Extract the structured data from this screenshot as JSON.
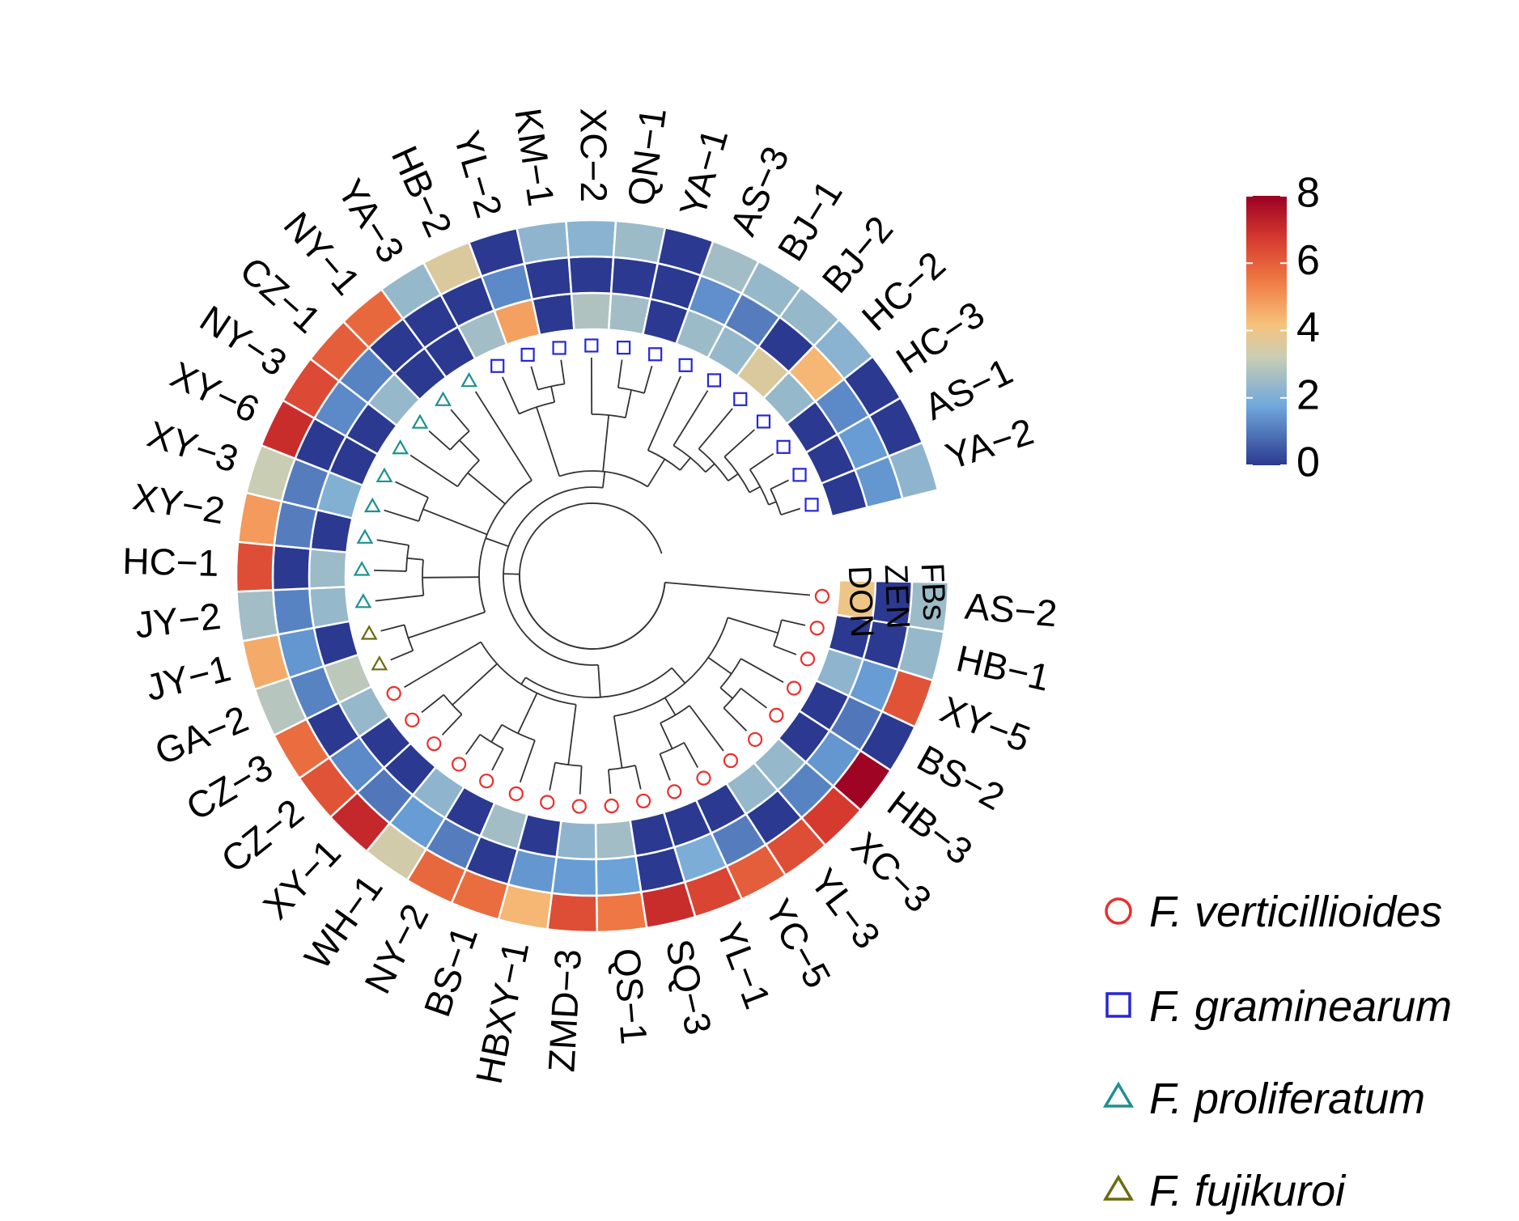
{
  "chart_data": {
    "type": "heatmap",
    "subtype": "circular heatmap with dendrogram",
    "title": "",
    "rings": [
      "DON",
      "ZEN",
      "FBs"
    ],
    "colorbar": {
      "min": 0,
      "max": 8,
      "ticks": [
        "0",
        "2",
        "4",
        "6",
        "8"
      ],
      "stops": [
        "#2b3990",
        "#6fa8dc",
        "#c9cdb4",
        "#f6c37c",
        "#f07c45",
        "#9b0023"
      ]
    },
    "legend": [
      {
        "label": "F. verticillioides",
        "marker": "circle",
        "color": "#e8302e"
      },
      {
        "label": "F. graminearum",
        "marker": "square",
        "color": "#2727d6"
      },
      {
        "label": "F. proliferatum",
        "marker": "triangle",
        "color": "#1e9090"
      },
      {
        "label": "F. fujikuroi",
        "marker": "triangle",
        "color": "#6b6b10"
      }
    ],
    "samples": [
      {
        "name": "AS−2",
        "species": "F. verticillioides",
        "DON": 4.0,
        "ZEN": 0.0,
        "FBs": 2.5
      },
      {
        "name": "HB−1",
        "species": "F. verticillioides",
        "DON": 0.0,
        "ZEN": 0.0,
        "FBs": 2.4
      },
      {
        "name": "XY−5",
        "species": "F. verticillioides",
        "DON": 2.3,
        "ZEN": 1.6,
        "FBs": 6.2
      },
      {
        "name": "BS−2",
        "species": "F. verticillioides",
        "DON": 0.0,
        "ZEN": 1.0,
        "FBs": 0.0
      },
      {
        "name": "HB−3",
        "species": "F. verticillioides",
        "DON": 0.0,
        "ZEN": 1.5,
        "FBs": 7.9
      },
      {
        "name": "XC−3",
        "species": "F. verticillioides",
        "DON": 2.4,
        "ZEN": 1.2,
        "FBs": 6.7
      },
      {
        "name": "YL−3",
        "species": "F. verticillioides",
        "DON": 2.4,
        "ZEN": 0.0,
        "FBs": 6.3
      },
      {
        "name": "YC−5",
        "species": "F. verticillioides",
        "DON": 0.0,
        "ZEN": 1.1,
        "FBs": 6.0
      },
      {
        "name": "YL−1",
        "species": "F. verticillioides",
        "DON": 0.0,
        "ZEN": 2.0,
        "FBs": 6.5
      },
      {
        "name": "SQ−3",
        "species": "F. verticillioides",
        "DON": 0.0,
        "ZEN": 0.0,
        "FBs": 7.0
      },
      {
        "name": "QS−1",
        "species": "F. verticillioides",
        "DON": 2.6,
        "ZEN": 1.7,
        "FBs": 5.5
      },
      {
        "name": "ZMD−3",
        "species": "F. verticillioides",
        "DON": 2.3,
        "ZEN": 1.6,
        "FBs": 6.3
      },
      {
        "name": "HBXY−1",
        "species": "F. verticillioides",
        "DON": 0.0,
        "ZEN": 1.5,
        "FBs": 4.4
      },
      {
        "name": "BS−1",
        "species": "F. verticillioides",
        "DON": 2.6,
        "ZEN": 0.0,
        "FBs": 5.7
      },
      {
        "name": "NY−2",
        "species": "F. verticillioides",
        "DON": 0.0,
        "ZEN": 1.1,
        "FBs": 5.8
      },
      {
        "name": "WH−1",
        "species": "F. verticillioides",
        "DON": 2.3,
        "ZEN": 1.6,
        "FBs": 3.4
      },
      {
        "name": "XY−1",
        "species": "F. verticillioides",
        "DON": 0.0,
        "ZEN": 1.0,
        "FBs": 7.1
      },
      {
        "name": "CZ−2",
        "species": "F. verticillioides",
        "DON": 0.0,
        "ZEN": 1.3,
        "FBs": 6.2
      },
      {
        "name": "CZ−3",
        "species": "F. verticillioides",
        "DON": 2.4,
        "ZEN": 0.0,
        "FBs": 5.7
      },
      {
        "name": "GA−2",
        "species": "F. fujikuroi",
        "DON": 3.0,
        "ZEN": 1.2,
        "FBs": 2.9
      },
      {
        "name": "JY−1",
        "species": "F. fujikuroi",
        "DON": 0.0,
        "ZEN": 1.5,
        "FBs": 4.6
      },
      {
        "name": "JY−2",
        "species": "F. proliferatum",
        "DON": 2.4,
        "ZEN": 1.2,
        "FBs": 2.6
      },
      {
        "name": "HC−1",
        "species": "F. proliferatum",
        "DON": 2.5,
        "ZEN": 0.0,
        "FBs": 6.3
      },
      {
        "name": "XY−2",
        "species": "F. proliferatum",
        "DON": 0.0,
        "ZEN": 1.1,
        "FBs": 4.9
      },
      {
        "name": "XY−3",
        "species": "F. proliferatum",
        "DON": 2.1,
        "ZEN": 1.1,
        "FBs": 3.2
      },
      {
        "name": "XY−6",
        "species": "F. proliferatum",
        "DON": 0.0,
        "ZEN": 0.0,
        "FBs": 7.0
      },
      {
        "name": "NY−3",
        "species": "F. proliferatum",
        "DON": 0.0,
        "ZEN": 1.3,
        "FBs": 6.4
      },
      {
        "name": "CZ−1",
        "species": "F. proliferatum",
        "DON": 2.4,
        "ZEN": 1.2,
        "FBs": 6.0
      },
      {
        "name": "NY−1",
        "species": "F. proliferatum",
        "DON": 0.0,
        "ZEN": 0.0,
        "FBs": 5.8
      },
      {
        "name": "YA−3",
        "species": "F. proliferatum",
        "DON": 0.0,
        "ZEN": 0.0,
        "FBs": 2.4
      },
      {
        "name": "HB−2",
        "species": "F. graminearum",
        "DON": 2.6,
        "ZEN": 0.0,
        "FBs": 3.6
      },
      {
        "name": "YL−2",
        "species": "F. graminearum",
        "DON": 4.8,
        "ZEN": 1.3,
        "FBs": 0.0
      },
      {
        "name": "KM−1",
        "species": "F. graminearum",
        "DON": 0.0,
        "ZEN": 0.0,
        "FBs": 2.3
      },
      {
        "name": "XC−2",
        "species": "F. graminearum",
        "DON": 2.8,
        "ZEN": 0.0,
        "FBs": 2.2
      },
      {
        "name": "QN−1",
        "species": "F. graminearum",
        "DON": 2.6,
        "ZEN": 0.0,
        "FBs": 2.5
      },
      {
        "name": "YA−1",
        "species": "F. graminearum",
        "DON": 0.0,
        "ZEN": 0.0,
        "FBs": 0.0
      },
      {
        "name": "AS−3",
        "species": "F. graminearum",
        "DON": 2.5,
        "ZEN": 1.4,
        "FBs": 2.6
      },
      {
        "name": "BJ−1",
        "species": "F. graminearum",
        "DON": 2.4,
        "ZEN": 1.1,
        "FBs": 2.4
      },
      {
        "name": "BJ−2",
        "species": "F. graminearum",
        "DON": 3.6,
        "ZEN": 0.0,
        "FBs": 2.4
      },
      {
        "name": "HC−2",
        "species": "F. graminearum",
        "DON": 2.4,
        "ZEN": 4.4,
        "FBs": 2.2
      },
      {
        "name": "HC−3",
        "species": "F. graminearum",
        "DON": 0.0,
        "ZEN": 1.3,
        "FBs": 0.0
      },
      {
        "name": "AS−1",
        "species": "F. graminearum",
        "DON": 0.0,
        "ZEN": 1.6,
        "FBs": 0.0
      },
      {
        "name": "YA−2",
        "species": "F. graminearum",
        "DON": 0.0,
        "ZEN": 1.5,
        "FBs": 2.3
      }
    ]
  }
}
